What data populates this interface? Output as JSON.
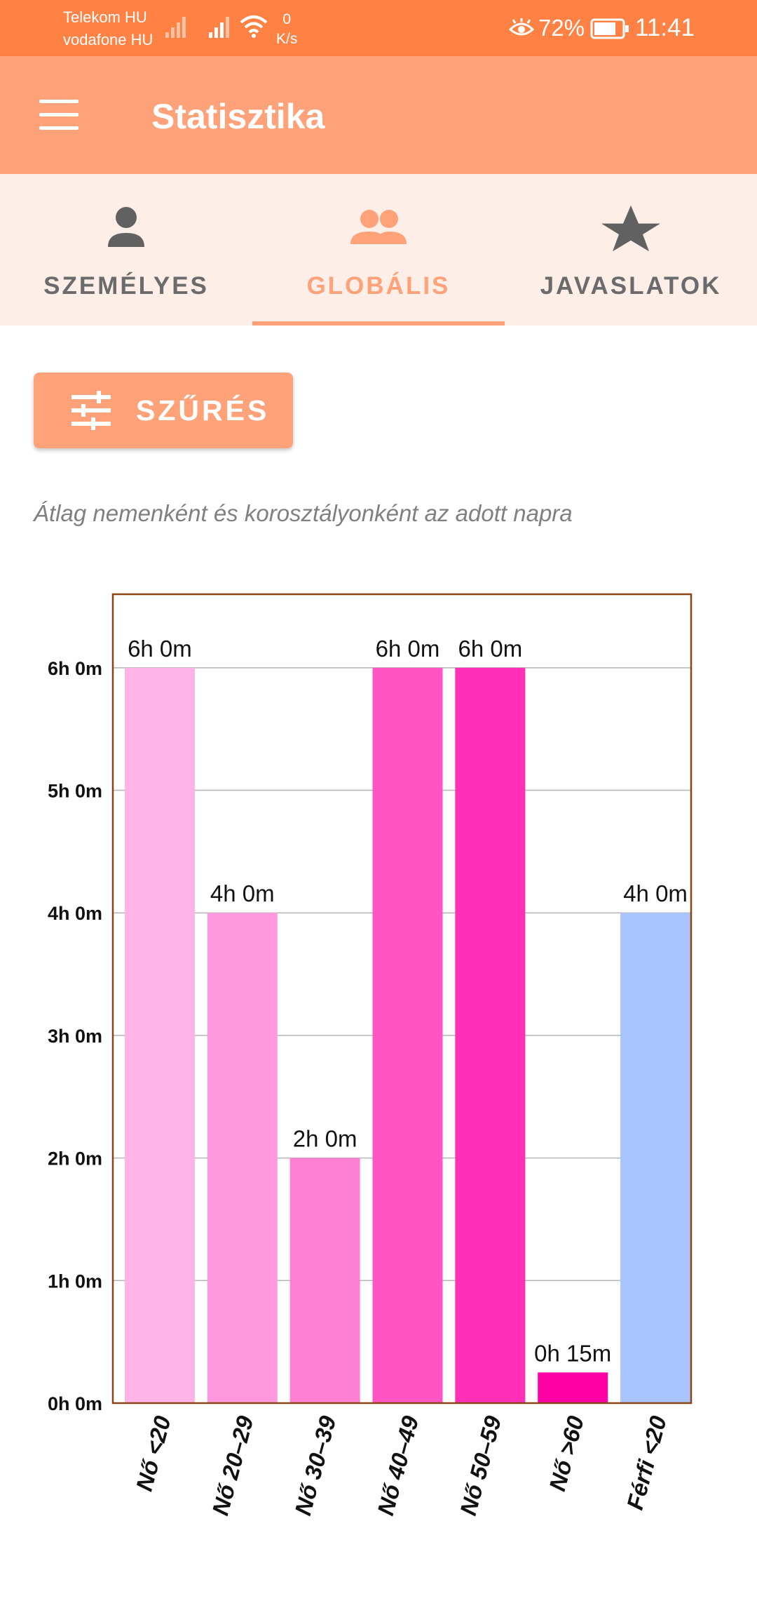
{
  "status_bar": {
    "carrier_1": "Telekom HU",
    "carrier_2": "vodafone HU",
    "speed_value": "0",
    "speed_unit": "K/s",
    "battery": "72%",
    "time": "11:41",
    "icons": [
      "signal-icon",
      "signal-icon",
      "wifi-icon",
      "eye-icon",
      "battery-icon"
    ]
  },
  "app_bar": {
    "title": "Statisztika",
    "menu_icon": "menu-icon"
  },
  "tabs": [
    {
      "label": "SZEMÉLYES",
      "icon": "person-icon",
      "active": false
    },
    {
      "label": "GLOBÁLIS",
      "icon": "people-icon",
      "active": true
    },
    {
      "label": "JAVASLATOK",
      "icon": "star-icon",
      "active": false
    }
  ],
  "filter_button": {
    "label": "SZŰRÉS",
    "icon": "tune-icon"
  },
  "subtitle": "Átlag nemenként és korosztályonként az adott napra",
  "colors": {
    "status_bar": "#ff8244",
    "app_bar": "#ffa27a",
    "tab_bar_bg": "#fdeee7",
    "chart_border": "#8b4513"
  },
  "chart_data": {
    "type": "bar",
    "categories": [
      "Nő <20",
      "Nő 20–29",
      "Nő 30–39",
      "Nő 40–49",
      "Nő 50–59",
      "Nő >60",
      "Férfi <20"
    ],
    "values": [
      360,
      240,
      120,
      360,
      360,
      15,
      240
    ],
    "value_unit": "minutes",
    "value_labels": [
      "6h 0m",
      "4h 0m",
      "2h 0m",
      "6h 0m",
      "6h 0m",
      "0h 15m",
      "4h 0m"
    ],
    "bar_colors": [
      "#ffb3e6",
      "#ff99dd",
      "#ff80d3",
      "#ff55c4",
      "#ff2fb8",
      "#ff00a6",
      "#a8c4ff"
    ],
    "y_ticks": [
      {
        "value": 0,
        "label": "0h 0m"
      },
      {
        "value": 60,
        "label": "1h 0m"
      },
      {
        "value": 120,
        "label": "2h 0m"
      },
      {
        "value": 180,
        "label": "3h 0m"
      },
      {
        "value": 240,
        "label": "4h 0m"
      },
      {
        "value": 300,
        "label": "5h 0m"
      },
      {
        "value": 360,
        "label": "6h 0m"
      }
    ],
    "ylim": [
      0,
      396
    ],
    "grid": true,
    "title": "",
    "xlabel": "",
    "ylabel": ""
  }
}
